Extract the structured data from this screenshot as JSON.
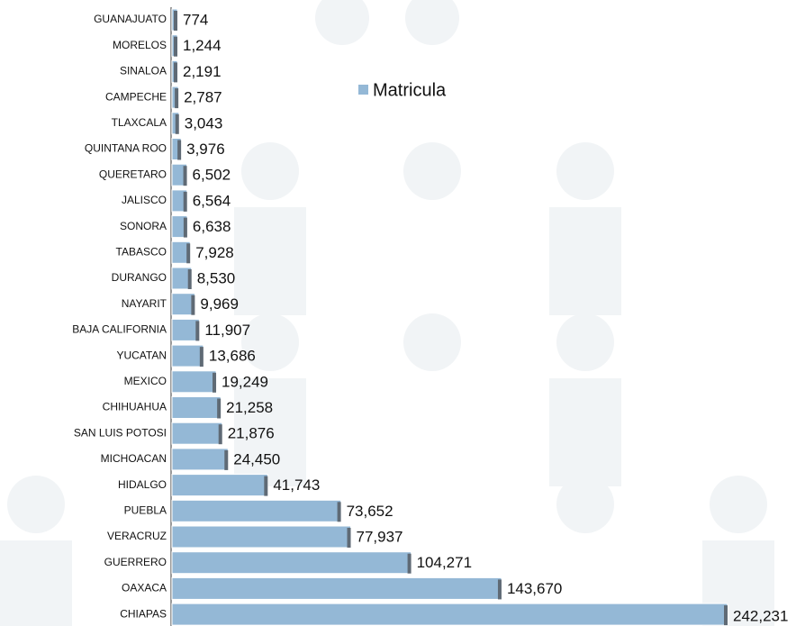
{
  "chart_data": {
    "type": "bar",
    "orientation": "horizontal",
    "categories": [
      "GUANAJUATO",
      "MORELOS",
      "SINALOA",
      "CAMPECHE",
      "TLAXCALA",
      "QUINTANA ROO",
      "QUERETARO",
      "JALISCO",
      "SONORA",
      "TABASCO",
      "DURANGO",
      "NAYARIT",
      "BAJA CALIFORNIA",
      "YUCATAN",
      "MEXICO",
      "CHIHUAHUA",
      "SAN LUIS POTOSI",
      "MICHOACAN",
      "HIDALGO",
      "PUEBLA",
      "VERACRUZ",
      "GUERRERO",
      "OAXACA",
      "CHIAPAS"
    ],
    "series": [
      {
        "name": "Matricula",
        "color": "#94b8d6",
        "values": [
          774,
          1244,
          2191,
          2787,
          3043,
          3976,
          6502,
          6564,
          6638,
          7928,
          8530,
          9969,
          11907,
          13686,
          19249,
          21258,
          21876,
          24450,
          41743,
          73652,
          77937,
          104271,
          143670,
          242231
        ],
        "value_labels": [
          "774",
          "1,244",
          "2,191",
          "2,787",
          "3,043",
          "3,976",
          "6,502",
          "6,564",
          "6,638",
          "7,928",
          "8,530",
          "9,969",
          "11,907",
          "13,686",
          "19,249",
          "21,258",
          "21,876",
          "24,450",
          "41,743",
          "73,652",
          "77,937",
          "104,271",
          "143,670",
          "242,231"
        ]
      }
    ],
    "legend": "top-center"
  }
}
